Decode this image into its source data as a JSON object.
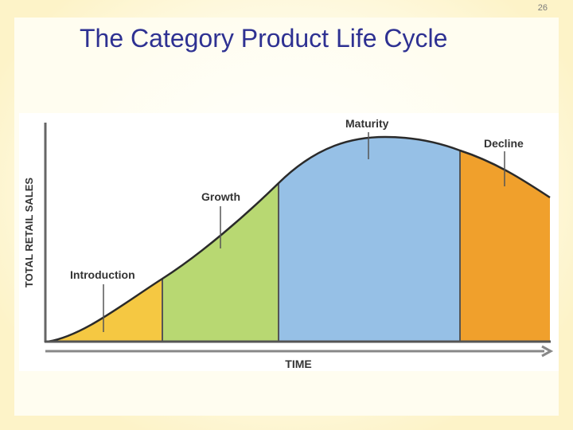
{
  "slide": {
    "page_number": "26",
    "title": "The Category Product Life Cycle"
  },
  "diagram": {
    "y_axis_label": "TOTAL RETAIL SALES",
    "x_axis_label": "TIME",
    "stages": [
      {
        "label": "Introduction",
        "color": "#f5c842"
      },
      {
        "label": "Growth",
        "color": "#b8d872"
      },
      {
        "label": "Maturity",
        "color": "#96c0e6"
      },
      {
        "label": "Decline",
        "color": "#f0a02c"
      }
    ]
  }
}
